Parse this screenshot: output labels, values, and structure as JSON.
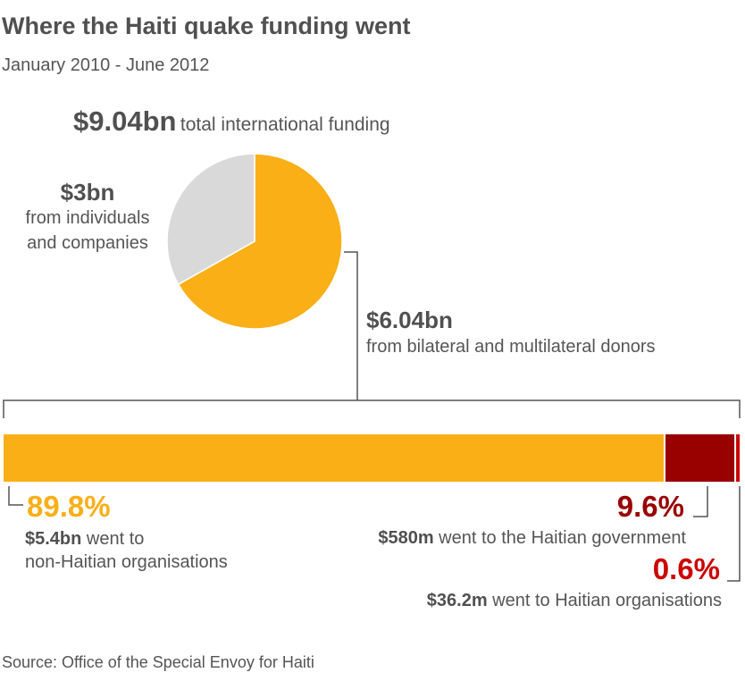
{
  "header": {
    "title": "Where the Haiti quake funding went",
    "subtitle": "January 2010 - June 2012"
  },
  "total": {
    "value": "$9.04bn",
    "label": "total international funding"
  },
  "pie_labels": {
    "individuals_value": "$3bn",
    "individuals_line1": "from individuals",
    "individuals_line2": "and companies",
    "donors_value": "$6.04bn",
    "donors_desc": "from bilateral and multilateral donors"
  },
  "breakdown": {
    "non_haitian_pct": "89.8%",
    "non_haitian_amount": "$5.4bn",
    "non_haitian_text1": " went to",
    "non_haitian_text2": "non-Haitian organisations",
    "government_pct": "9.6%",
    "government_amount": "$580m",
    "government_text": " went to the Haitian government",
    "haitian_orgs_pct": "0.6%",
    "haitian_orgs_amount": "$36.2m",
    "haitian_orgs_text": " went to Haitian organisations"
  },
  "source": "Source: Office of the Special Envoy for Haiti",
  "colors": {
    "orange": "#FAAF17",
    "grey": "#D9D9D9",
    "dark_red": "#990000",
    "red": "#CC0000",
    "line": "#555555",
    "text": "#555555"
  },
  "chart_data": [
    {
      "type": "pie",
      "categories": [
        "from individuals and companies",
        "from bilateral and multilateral donors"
      ],
      "values": [
        3.0,
        6.04
      ],
      "unit": "$bn",
      "total": 9.04
    },
    {
      "type": "bar",
      "orientation": "horizontal-stacked",
      "categories": [
        "non-Haitian organisations",
        "Haitian government",
        "Haitian organisations"
      ],
      "values": [
        89.8,
        9.6,
        0.6
      ],
      "amounts": [
        "$5.4bn",
        "$580m",
        "$36.2m"
      ],
      "unit": "%"
    }
  ]
}
